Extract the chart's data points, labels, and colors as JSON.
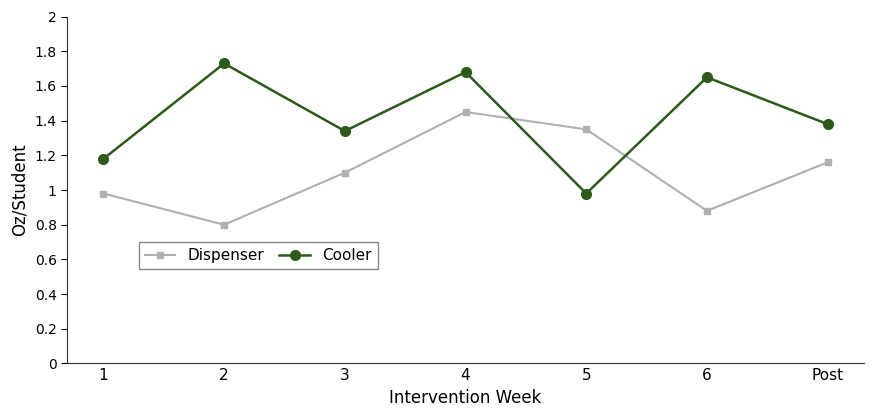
{
  "x_labels": [
    "1",
    "2",
    "3",
    "4",
    "5",
    "6",
    "Post"
  ],
  "dispenser_values": [
    0.98,
    0.8,
    1.1,
    1.45,
    1.35,
    0.88,
    1.16
  ],
  "cooler_values": [
    1.18,
    1.73,
    1.34,
    1.68,
    0.98,
    1.65,
    1.38
  ],
  "dispenser_color": "#b0b0b0",
  "cooler_color": "#2d5a1b",
  "dispenser_label": "Dispenser",
  "cooler_label": "Cooler",
  "xlabel": "Intervention Week",
  "ylabel": "Oz/Student",
  "ylim": [
    0,
    2.0
  ],
  "yticks": [
    0,
    0.2,
    0.4,
    0.6,
    0.8,
    1.0,
    1.2,
    1.4,
    1.6,
    1.8,
    2.0
  ],
  "background_color": "#ffffff",
  "legend_ncol": 2
}
